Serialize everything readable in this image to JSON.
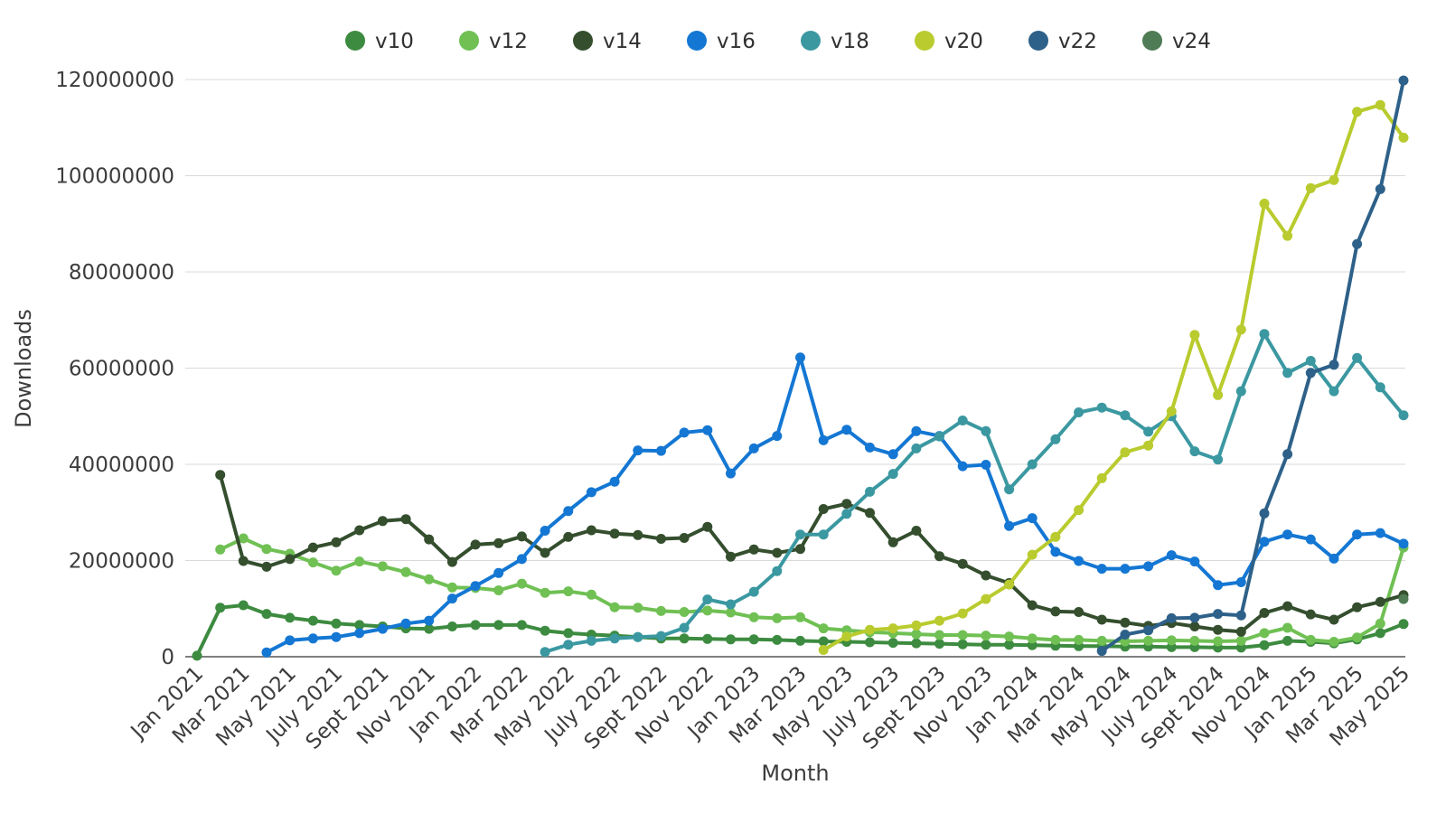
{
  "page": {
    "background": "#ffffff"
  },
  "chart_data": {
    "type": "line",
    "title": "",
    "xlabel": "Month",
    "ylabel": "Downloads",
    "unit": "downloads",
    "values_unit": "millions_of_downloads",
    "grid": "horizontal",
    "legend_position": "top-center",
    "ylim_millions": [
      0,
      120
    ],
    "y_ticks_millions": [
      0,
      20,
      40,
      60,
      80,
      100,
      120
    ],
    "y_tick_labels": [
      "0",
      "20000000",
      "40000000",
      "60000000",
      "80000000",
      "100000000",
      "120000000"
    ],
    "x_tick_step": 2,
    "x_months": [
      "Jan 2021",
      "Feb 2021",
      "Mar 2021",
      "Apr 2021",
      "May 2021",
      "June 2021",
      "July 2021",
      "Aug 2021",
      "Sept 2021",
      "Oct 2021",
      "Nov 2021",
      "Dec 2021",
      "Jan 2022",
      "Feb 2022",
      "Mar 2022",
      "Apr 2022",
      "May 2022",
      "June 2022",
      "July 2022",
      "Aug 2022",
      "Sept 2022",
      "Oct 2022",
      "Nov 2022",
      "Dec 2022",
      "Jan 2023",
      "Feb 2023",
      "Mar 2023",
      "Apr 2023",
      "May 2023",
      "June 2023",
      "July 2023",
      "Aug 2023",
      "Sept 2023",
      "Oct 2023",
      "Nov 2023",
      "Dec 2023",
      "Jan 2024",
      "Feb 2024",
      "Mar 2024",
      "Apr 2024",
      "May 2024",
      "June 2024",
      "July 2024",
      "Aug 2024",
      "Sept 2024",
      "Oct 2024",
      "Nov 2024",
      "Dec 2024",
      "Jan 2025",
      "Feb 2025",
      "Mar 2025",
      "Apr 2025",
      "May 2025"
    ],
    "series": [
      {
        "name": "v10",
        "color": "#3d8b40",
        "start_month_index": 0,
        "values_millions": [
          0.2,
          10.2,
          10.7,
          8.9,
          8.1,
          7.5,
          6.9,
          6.6,
          6.3,
          5.9,
          5.8,
          6.3,
          6.6,
          6.6,
          6.6,
          5.4,
          4.9,
          4.6,
          4.4,
          4.1,
          3.8,
          3.8,
          3.7,
          3.6,
          3.6,
          3.5,
          3.3,
          3.2,
          3.1,
          3.0,
          2.9,
          2.8,
          2.7,
          2.6,
          2.5,
          2.5,
          2.4,
          2.3,
          2.2,
          2.2,
          2.1,
          2.1,
          2.0,
          2.0,
          1.9,
          1.9,
          2.4,
          3.3,
          3.1,
          2.8,
          3.6,
          4.9,
          6.8
        ]
      },
      {
        "name": "v12",
        "color": "#70c054",
        "start_month_index": 1,
        "values_millions": [
          22.3,
          24.6,
          22.4,
          21.4,
          19.6,
          17.9,
          19.8,
          18.8,
          17.6,
          16.1,
          14.4,
          14.3,
          13.8,
          15.2,
          13.3,
          13.6,
          12.9,
          10.3,
          10.2,
          9.5,
          9.3,
          9.6,
          9.2,
          8.2,
          8.0,
          8.2,
          5.9,
          5.5,
          5.1,
          4.9,
          4.7,
          4.5,
          4.5,
          4.4,
          4.2,
          3.8,
          3.5,
          3.5,
          3.3,
          3.2,
          3.3,
          3.4,
          3.3,
          3.2,
          3.3,
          4.9,
          6.0,
          3.5,
          3.1,
          4.0,
          6.9,
          22.7
        ]
      },
      {
        "name": "v14",
        "color": "#344e2e",
        "start_month_index": 1,
        "values_millions": [
          37.8,
          19.9,
          18.7,
          20.3,
          22.7,
          23.8,
          26.3,
          28.2,
          28.6,
          24.4,
          19.7,
          23.3,
          23.6,
          25.0,
          21.6,
          24.9,
          26.3,
          25.6,
          25.3,
          24.5,
          24.7,
          27.0,
          20.8,
          22.3,
          21.6,
          22.4,
          30.7,
          31.8,
          29.9,
          23.8,
          26.2,
          20.9,
          19.3,
          16.9,
          15.3,
          10.7,
          9.4,
          9.3,
          7.7,
          7.1,
          6.4,
          7.0,
          6.3,
          5.6,
          5.2,
          9.1,
          10.5,
          8.8,
          7.7,
          10.3,
          11.4,
          12.8
        ]
      },
      {
        "name": "v16",
        "color": "#1477d3",
        "start_month_index": 3,
        "values_millions": [
          0.9,
          3.4,
          3.8,
          4.1,
          4.9,
          5.8,
          6.9,
          7.5,
          12.1,
          14.7,
          17.4,
          20.3,
          26.2,
          30.3,
          34.2,
          36.4,
          42.9,
          42.8,
          46.6,
          47.1,
          38.1,
          43.3,
          45.9,
          62.2,
          45.0,
          47.2,
          43.5,
          42.1,
          46.9,
          45.9,
          39.6,
          39.9,
          27.2,
          28.8,
          21.8,
          19.9,
          18.3,
          18.3,
          18.8,
          21.1,
          19.8,
          14.9,
          15.5,
          23.9,
          25.4,
          24.4,
          20.4,
          25.4,
          25.7,
          23.5
        ]
      },
      {
        "name": "v18",
        "color": "#3b98a1",
        "start_month_index": 15,
        "values_millions": [
          1.0,
          2.5,
          3.3,
          3.8,
          4.1,
          4.3,
          6.0,
          11.9,
          10.9,
          13.5,
          17.8,
          25.4,
          25.4,
          29.7,
          34.3,
          38.0,
          43.3,
          45.8,
          49.1,
          46.9,
          34.8,
          40.0,
          45.2,
          50.8,
          51.8,
          50.2,
          46.8,
          50.0,
          42.7,
          41.0,
          55.2,
          67.1,
          59.0,
          61.5,
          55.2,
          62.1,
          56.0,
          50.2
        ]
      },
      {
        "name": "v20",
        "color": "#b9cb2e",
        "start_month_index": 27,
        "values_millions": [
          1.4,
          4.2,
          5.6,
          5.9,
          6.5,
          7.5,
          9.0,
          12.0,
          15.0,
          21.2,
          24.9,
          30.5,
          37.1,
          42.5,
          43.9,
          51.0,
          66.9,
          54.4,
          68.0,
          94.2,
          87.5,
          97.4,
          99.1,
          113.3,
          114.7,
          107.9
        ]
      },
      {
        "name": "v22",
        "color": "#2e6189",
        "start_month_index": 39,
        "values_millions": [
          1.2,
          4.6,
          5.5,
          8.0,
          8.1,
          8.9,
          8.6,
          29.8,
          42.1,
          59.0,
          60.7,
          85.8,
          97.2,
          119.8
        ]
      },
      {
        "name": "v24",
        "color": "#4f7b55",
        "start_month_index": 52,
        "values_millions": [
          12.0
        ]
      }
    ]
  }
}
